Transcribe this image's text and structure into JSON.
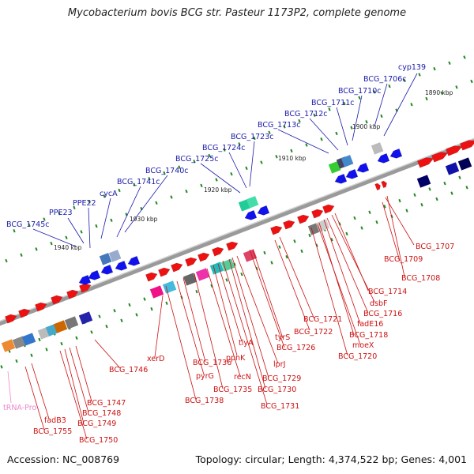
{
  "title": "Mycobacterium bovis BCG str. Pasteur 1173P2, complete genome",
  "footer": {
    "accession": "Accession: NC_008769",
    "summary": "Topology: circular; Length: 4,374,522 bp; Genes: 4,001"
  },
  "kbp_ticks": [
    "1890 kbp",
    "1900 kbp",
    "1910 kbp",
    "1920 kbp",
    "1930 kbp",
    "1940 kbp"
  ],
  "labels_blue": [
    "BCG_1745c",
    "PPE23",
    "PPE22",
    "cycA",
    "BCG_1741c",
    "BCG_1740c",
    "BCG_1725c",
    "BCG_1724c",
    "BCG_1723c",
    "BCG_1713c",
    "BCG_1712c",
    "BCG_1711c",
    "BCG_1710c",
    "BCG_1706c",
    "cyp139"
  ],
  "labels_red": [
    "BCG_1707",
    "BCG_1709",
    "BCG_1708",
    "BCG_1714",
    "dsbF",
    "BCG_1716",
    "fadE16",
    "BCG_1718",
    "moeX",
    "BCG_1720",
    "BCG_1721",
    "BCG_1722",
    "tyrS",
    "BCG_1726",
    "lprJ",
    "BCG_1729",
    "BCG_1730",
    "BCG_1731",
    "tlyA",
    "ppnK",
    "recN",
    "BCG_1735",
    "BCG_1736",
    "pyrG",
    "BCG_1738",
    "xerD",
    "BCG_1746",
    "BCG_1747",
    "BCG_1748",
    "BCG_1749",
    "BCG_1750",
    "fadB3",
    "BCG_1755"
  ],
  "labels_pink": [
    "tRNA-Pro"
  ],
  "colors": {
    "forward": "#ee1111",
    "reverse": "#1111ee",
    "label_blue": "#1a1aaa",
    "label_red": "#cc1111",
    "label_pink": "#ee88cc",
    "tick_green": "#228822",
    "backbone": "#808080"
  }
}
